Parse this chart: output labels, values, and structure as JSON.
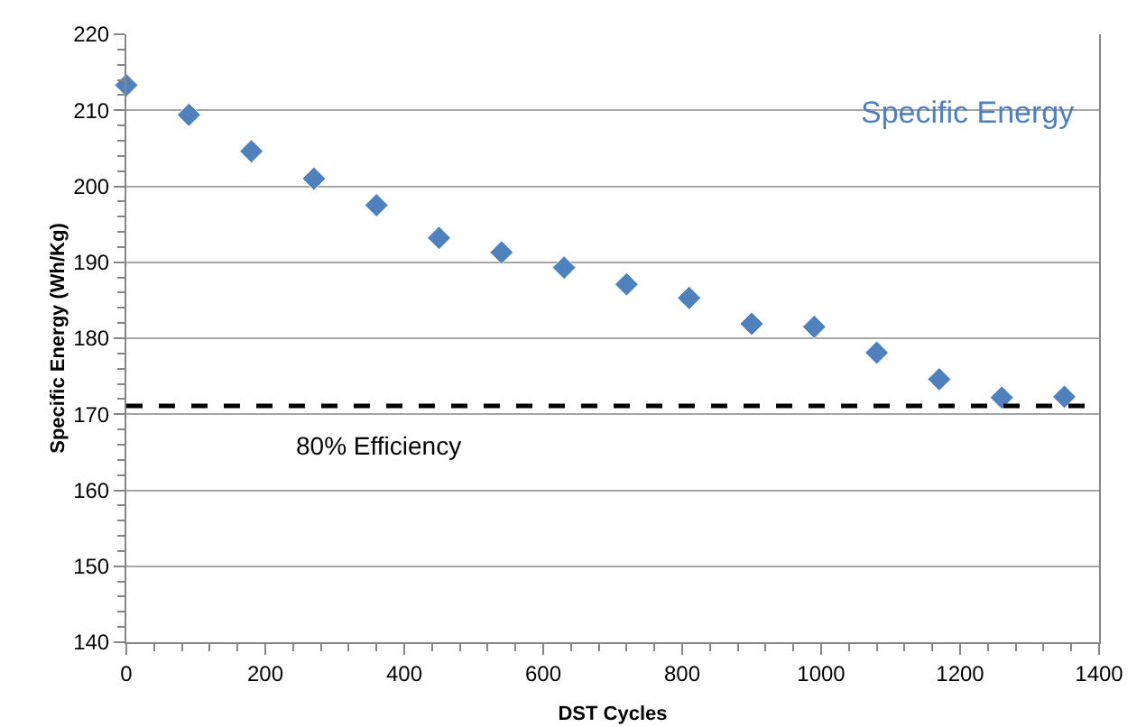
{
  "chart_data": {
    "type": "scatter",
    "xlabel": "DST Cycles",
    "ylabel": "Specific Energy (Wh/Kg)",
    "x": [
      0,
      90,
      180,
      270,
      360,
      450,
      540,
      630,
      720,
      810,
      900,
      990,
      1080,
      1170,
      1260,
      1350
    ],
    "series": [
      {
        "name": "Specific Energy",
        "color": "#4f81bd",
        "values": [
          213.3,
          209.4,
          204.6,
          201.0,
          197.5,
          193.2,
          191.3,
          189.3,
          187.1,
          185.3,
          181.9,
          181.5,
          178.1,
          174.6,
          172.2,
          172.3
        ]
      }
    ],
    "xlim": [
      0,
      1400
    ],
    "xticks": [
      0,
      200,
      400,
      600,
      800,
      1000,
      1200,
      1400
    ],
    "ylim": [
      140,
      220
    ],
    "yticks": [
      140,
      150,
      160,
      170,
      180,
      190,
      200,
      210,
      220
    ],
    "grid": "y",
    "marker": "diamond",
    "ref_lines": [
      {
        "axis": "y",
        "value": 171.1,
        "label": "80% Efficiency",
        "color": "#000000",
        "line_style": "dashed"
      }
    ]
  }
}
